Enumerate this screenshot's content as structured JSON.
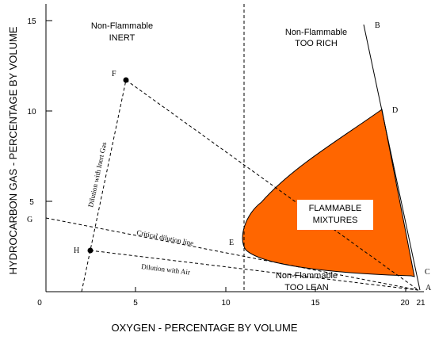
{
  "axes": {
    "x_title": "OXYGEN - PERCENTAGE BY VOLUME",
    "y_title": "HYDROCARBON GAS - PERCENTAGE BY VOLUME",
    "x_ticks": [
      "0",
      "5",
      "10",
      "15",
      "20",
      "21"
    ],
    "y_ticks": [
      "5",
      "10",
      "15"
    ],
    "x_range": [
      0,
      21
    ],
    "y_range": [
      0,
      15
    ]
  },
  "regions": {
    "inert": {
      "line1": "Non-Flammable",
      "line2": "INERT"
    },
    "too_rich": {
      "line1": "Non-Flammable",
      "line2": "TOO RICH"
    },
    "too_lean": {
      "line1": "Non-Flammable",
      "line2": "TOO LEAN"
    },
    "flammable": {
      "line1": "FLAMMABLE",
      "line2": "MIXTURES"
    }
  },
  "points": {
    "A": {
      "label": "A",
      "x": 20.9,
      "y": 0
    },
    "B": {
      "label": "B",
      "x": 17.6,
      "y": 15
    },
    "C": {
      "label": "C",
      "x": 20.2,
      "y": 0.9
    },
    "D": {
      "label": "D",
      "x": 18.6,
      "y": 10.1
    },
    "E": {
      "label": "E",
      "x": 11.1,
      "y": 2.8
    },
    "F": {
      "label": "F",
      "x": 4.6,
      "y": 11.7
    },
    "G": {
      "label": "G",
      "x": 0,
      "y": 4.2
    },
    "H": {
      "label": "H",
      "x": 2.5,
      "y": 2.3
    }
  },
  "lines": {
    "critical_dilution": "Critical dilution line",
    "dilution_air": "Dilution with Air",
    "dilution_inert": "Dilution with Inert Gas"
  },
  "colors": {
    "flammable_fill": "#ff6600",
    "line": "#000000",
    "label_box": "#ffffff"
  }
}
